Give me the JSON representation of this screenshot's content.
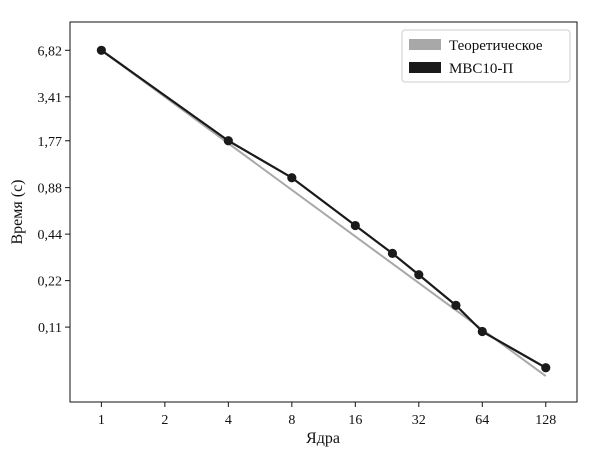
{
  "chart_data": {
    "type": "line",
    "title": "",
    "xlabel": "Ядра",
    "ylabel": "Время (с)",
    "x_scale": "log2",
    "y_scale": "log2",
    "x_ticks": [
      1,
      2,
      4,
      8,
      16,
      32,
      64,
      128
    ],
    "x_tick_labels": [
      "1",
      "2",
      "4",
      "8",
      "16",
      "32",
      "64",
      "128"
    ],
    "y_ticks": [
      0.11,
      0.22,
      0.44,
      0.88,
      1.77,
      3.41,
      6.82
    ],
    "y_tick_labels": [
      "0,11",
      "0,22",
      "0,44",
      "0,88",
      "1,77",
      "3,41",
      "6,82"
    ],
    "xlim": [
      0.71,
      180
    ],
    "ylim": [
      0.036,
      10.4
    ],
    "grid": false,
    "legend_position": "top-right",
    "series": [
      {
        "name": "Теоретическое",
        "color": "#a8a8a8",
        "markers": false,
        "x": [
          1,
          128
        ],
        "y": [
          6.82,
          0.053
        ]
      },
      {
        "name": "МВС10-П",
        "color": "#1a1a1a",
        "markers": true,
        "x": [
          1,
          4,
          8,
          16,
          24,
          32,
          48,
          64,
          128
        ],
        "y": [
          6.82,
          1.77,
          1.02,
          0.5,
          0.33,
          0.24,
          0.152,
          0.103,
          0.06
        ]
      }
    ]
  }
}
